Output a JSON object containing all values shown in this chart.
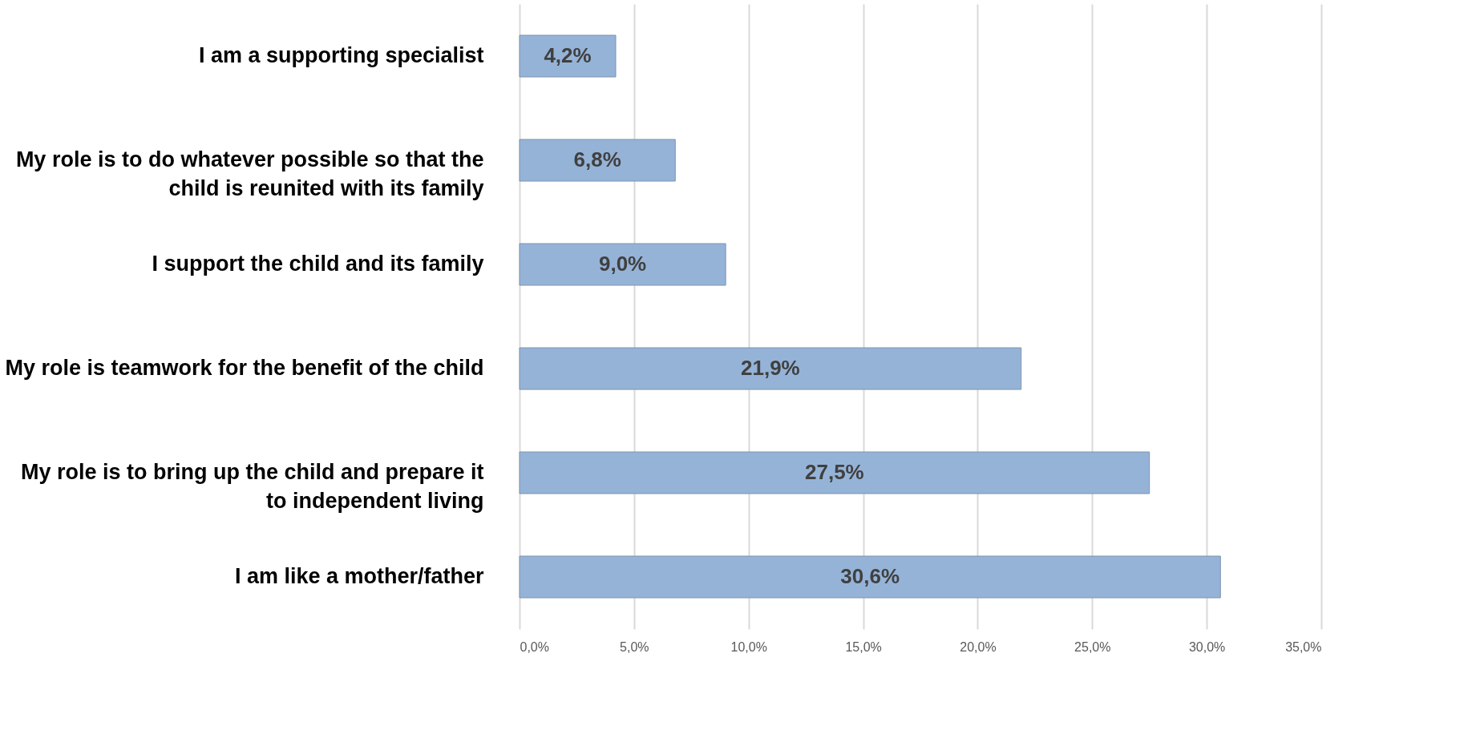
{
  "chart_data": {
    "type": "bar",
    "orientation": "horizontal",
    "categories": [
      "I am a supporting specialist",
      "My role is to do whatever possible so that the child is reunited with its family",
      "I support the child and its family",
      "My role is teamwork for the benefit of the child",
      "My role is to bring up the child and prepare it to independent living",
      "I am like a mother/father"
    ],
    "values": [
      4.2,
      6.8,
      9.0,
      21.9,
      27.5,
      30.6
    ],
    "value_labels": [
      "4,2%",
      "6,8%",
      "9,0%",
      "21,9%",
      "27,5%",
      "30,6%"
    ],
    "color": "#95b3d7",
    "xlim": [
      0,
      35
    ],
    "xticks": [
      {
        "value": 0,
        "label": "0,0%"
      },
      {
        "value": 5,
        "label": "5,0%"
      },
      {
        "value": 10,
        "label": "10,0%"
      },
      {
        "value": 15,
        "label": "15,0%"
      },
      {
        "value": 20,
        "label": "20,0%"
      },
      {
        "value": 25,
        "label": "25,0%"
      },
      {
        "value": 30,
        "label": "30,0%"
      },
      {
        "value": 35,
        "label": "35,0%"
      }
    ],
    "grid": "x"
  }
}
